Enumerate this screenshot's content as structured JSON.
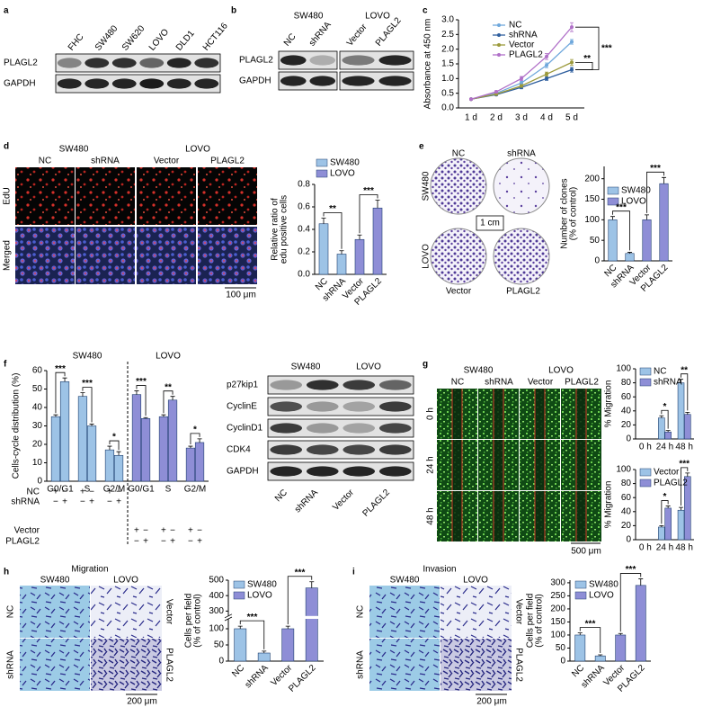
{
  "chart_data": [
    {
      "type": "line",
      "y_label": [
        "Absorbance at 450 nm"
      ],
      "categories": [
        "1 d",
        "2 d",
        "3 d",
        "4 d",
        "5 d"
      ],
      "series": [
        {
          "name": "NC",
          "color": "#6fa8dc",
          "values": [
            0.3,
            0.5,
            0.85,
            1.45,
            2.25
          ],
          "errors": [
            0.02,
            0.03,
            0.06,
            0.08,
            0.08
          ]
        },
        {
          "name": "shRNA",
          "color": "#2f5f9e",
          "values": [
            0.3,
            0.45,
            0.7,
            1.0,
            1.3
          ],
          "errors": [
            0.02,
            0.03,
            0.05,
            0.06,
            0.08
          ]
        },
        {
          "name": "Vector",
          "color": "#9c9a3c",
          "values": [
            0.3,
            0.47,
            0.75,
            1.15,
            1.55
          ],
          "errors": [
            0.02,
            0.03,
            0.05,
            0.07,
            0.1
          ]
        },
        {
          "name": "PLAGL2",
          "color": "#b070c8",
          "values": [
            0.3,
            0.55,
            1.0,
            1.75,
            2.75
          ],
          "errors": [
            0.02,
            0.04,
            0.07,
            0.1,
            0.15
          ]
        }
      ],
      "ylim": [
        0,
        3
      ],
      "yticks": [
        {
          "value": 0,
          "label": "0.0"
        },
        0.5,
        {
          "value": 1,
          "label": "1.0"
        },
        1.5,
        {
          "value": 2,
          "label": "2.0"
        },
        2.5,
        {
          "value": 3,
          "label": "3.0"
        }
      ],
      "annotations": [
        "***",
        "**"
      ]
    },
    {
      "type": "bar",
      "y_label": [
        "Relative ratio of",
        "edu positive cells"
      ],
      "categories": [
        "NC",
        "shRNA",
        "Vector",
        "PLAGL2"
      ],
      "series": [
        {
          "name": "SW480",
          "color": "#9dc3e6",
          "values": [
            0.45,
            0.18,
            null,
            null
          ],
          "errors": [
            0.05,
            0.03,
            null,
            null
          ]
        },
        {
          "name": "LOVO",
          "color": "#8e8ed6",
          "values": [
            null,
            null,
            0.31,
            0.59
          ],
          "errors": [
            null,
            null,
            0.04,
            0.07
          ]
        }
      ],
      "ylim": [
        0,
        0.8
      ],
      "yticks": [
        {
          "value": 0,
          "label": "0.0"
        },
        0.2,
        0.4,
        0.6,
        0.8
      ],
      "annotations": [
        "**",
        "***"
      ]
    },
    {
      "type": "bar",
      "y_label": [
        "Number of clones",
        "(% of control)"
      ],
      "categories": [
        "NC",
        "shRNA",
        "Vector",
        "PLAGL2"
      ],
      "series": [
        {
          "name": "SW480",
          "color": "#9dc3e6",
          "values": [
            100,
            18,
            null,
            null
          ],
          "errors": [
            8,
            3,
            null,
            null
          ]
        },
        {
          "name": "LOVO",
          "color": "#8e8ed6",
          "values": [
            null,
            null,
            100,
            188
          ],
          "errors": [
            null,
            null,
            12,
            15
          ]
        }
      ],
      "ylim": [
        0,
        230
      ],
      "yticks": [
        0,
        50,
        100,
        150,
        200
      ],
      "annotations": [
        "***",
        "***"
      ]
    },
    {
      "type": "bar",
      "y_label": [
        "Cells-cycle distribution (%)"
      ],
      "groups": [
        "SW480",
        "LOVO"
      ],
      "categories": [
        "G0/G1",
        "S",
        "G2/M",
        "G0/G1",
        "S",
        "G2/M"
      ],
      "colors": [
        "#9dc3e6",
        "#9dc3e6",
        "#9dc3e6",
        "#8e8ed6",
        "#8e8ed6",
        "#8e8ed6"
      ],
      "series": [
        {
          "values": [
            35,
            46,
            17,
            47,
            35,
            18
          ],
          "errors": [
            1,
            2,
            2,
            2,
            1,
            1
          ]
        },
        {
          "values": [
            54,
            30,
            14,
            34,
            44,
            21
          ],
          "errors": [
            2,
            1,
            2,
            0.5,
            2,
            2
          ]
        }
      ],
      "ylim": [
        0,
        60
      ],
      "yticks": [
        0,
        10,
        20,
        30,
        40,
        50,
        60
      ],
      "annotations": [
        "***",
        "***",
        "*",
        "***",
        "**",
        "*"
      ]
    },
    {
      "type": "bar",
      "y_label": [
        "% Migration"
      ],
      "categories": [
        "0 h",
        "24 h",
        "48 h"
      ],
      "series": [
        {
          "name": "NC",
          "color": "#9dc3e6",
          "values": [
            0,
            30,
            80
          ],
          "errors": [
            0,
            3,
            5
          ]
        },
        {
          "name": "shRNA",
          "color": "#8e8ed6",
          "values": [
            0,
            10,
            35
          ],
          "errors": [
            0,
            2,
            3
          ]
        }
      ],
      "ylim": [
        0,
        100
      ],
      "yticks": [
        0,
        20,
        40,
        60,
        80,
        100
      ],
      "annotations": [
        "*",
        "**"
      ]
    },
    {
      "type": "bar",
      "y_label": [
        "% Migration"
      ],
      "categories": [
        "0 h",
        "24 h",
        "48 h"
      ],
      "series": [
        {
          "name": "Vector",
          "color": "#9dc3e6",
          "values": [
            0,
            18,
            42
          ],
          "errors": [
            0,
            2,
            4
          ]
        },
        {
          "name": "PLAGL2",
          "color": "#8e8ed6",
          "values": [
            0,
            45,
            90
          ],
          "errors": [
            0,
            3,
            5
          ]
        }
      ],
      "ylim": [
        0,
        100
      ],
      "yticks": [
        0,
        20,
        40,
        60,
        80,
        100
      ],
      "annotations": [
        "*",
        "***"
      ]
    },
    {
      "type": "bar",
      "y_label": [
        "Cells per field",
        "(% of control)"
      ],
      "categories": [
        "NC",
        "shRNA",
        "Vector",
        "PLAGL2"
      ],
      "series": [
        {
          "name": "SW480",
          "color": "#9dc3e6",
          "values": [
            100,
            25,
            null,
            null
          ],
          "errors": [
            8,
            6,
            null,
            null
          ]
        },
        {
          "name": "LOVO",
          "color": "#8e8ed6",
          "values": [
            null,
            null,
            100,
            450
          ],
          "errors": [
            null,
            null,
            8,
            40
          ]
        }
      ],
      "ylim": [
        0,
        500
      ],
      "y_break": [
        125,
        280
      ],
      "yticks": [
        0,
        50,
        100,
        300,
        400,
        500
      ],
      "annotations": [
        "***",
        "***"
      ]
    },
    {
      "type": "bar",
      "y_label": [
        "Cells per field",
        "(% of control)"
      ],
      "categories": [
        "NC",
        "shRNA",
        "Vector",
        "PLAGL2"
      ],
      "series": [
        {
          "name": "SW480",
          "color": "#9dc3e6",
          "values": [
            100,
            20,
            null,
            null
          ],
          "errors": [
            8,
            4,
            null,
            null
          ]
        },
        {
          "name": "LOVO",
          "color": "#8e8ed6",
          "values": [
            null,
            null,
            100,
            290
          ],
          "errors": [
            null,
            null,
            6,
            25
          ]
        }
      ],
      "ylim": [
        0,
        310
      ],
      "yticks": [
        0,
        50,
        100,
        150,
        200,
        250,
        300
      ],
      "annotations": [
        "***",
        "***"
      ]
    }
  ],
  "panel_a": {
    "letter": "a",
    "lanes": [
      "FHC",
      "SW480",
      "SW620",
      "LOVO",
      "DLD1",
      "HCT116"
    ],
    "rows": [
      "PLAGL2",
      "GAPDH"
    ]
  },
  "panel_b": {
    "letter": "b",
    "groups": [
      "SW480",
      "LOVO"
    ],
    "lanes": [
      "NC",
      "shRNA",
      "Vector",
      "PLAGL2"
    ],
    "rows": [
      "PLAGL2",
      "GAPDH"
    ]
  },
  "panel_c": {
    "letter": "c"
  },
  "panel_d": {
    "letter": "d",
    "groups": [
      "SW480",
      "LOVO"
    ],
    "columns": [
      "NC",
      "shRNA",
      "Vector",
      "PLAGL2"
    ],
    "rows": [
      "EdU",
      "Merged"
    ],
    "scale_bar": "100 μm"
  },
  "panel_e": {
    "letter": "e",
    "top": [
      "NC",
      "shRNA"
    ],
    "bottom": [
      "Vector",
      "PLAGL2"
    ],
    "sides": [
      "SW480",
      "LOVO"
    ],
    "scale_bar": "1 cm"
  },
  "panel_f": {
    "letter": "f",
    "design": [
      {
        "label": "NC",
        "marks": [
          "+",
          "−",
          "+",
          "−",
          "+",
          "−"
        ]
      },
      {
        "label": "shRNA",
        "marks": [
          "−",
          "+",
          "−",
          "+",
          "−",
          "+"
        ]
      },
      {
        "label": "Vector",
        "marks": [
          "+",
          "−",
          "+",
          "−",
          "+",
          "−"
        ]
      },
      {
        "label": "PLAGL2",
        "marks": [
          "−",
          "+",
          "−",
          "+",
          "−",
          "+"
        ]
      }
    ],
    "blot": {
      "groups": [
        "SW480",
        "LOVO"
      ],
      "lanes": [
        "NC",
        "shRNA",
        "Vector",
        "PLAGL2"
      ],
      "rows": [
        "p27kip1",
        "CyclinE",
        "CyclinD1",
        "CDK4",
        "GAPDH"
      ]
    }
  },
  "panel_g": {
    "letter": "g",
    "groups": [
      "SW480",
      "LOVO"
    ],
    "columns": [
      "NC",
      "shRNA",
      "Vector",
      "PLAGL2"
    ],
    "rows": [
      "0 h",
      "24 h",
      "48 h"
    ],
    "scale_bar": "500 μm"
  },
  "panel_h": {
    "letter": "h",
    "title": "Migration",
    "columns": [
      "SW480",
      "LOVO"
    ],
    "left": [
      "NC",
      "shRNA"
    ],
    "right": [
      "Vector",
      "PLAGL2"
    ],
    "scale_bar": "200 μm"
  },
  "panel_i": {
    "letter": "i",
    "title": "Invasion",
    "columns": [
      "SW480",
      "LOVO"
    ],
    "left": [
      "NC",
      "shRNA"
    ],
    "right": [
      "Vector",
      "PLAGL2"
    ],
    "scale_bar": "200 μm"
  }
}
